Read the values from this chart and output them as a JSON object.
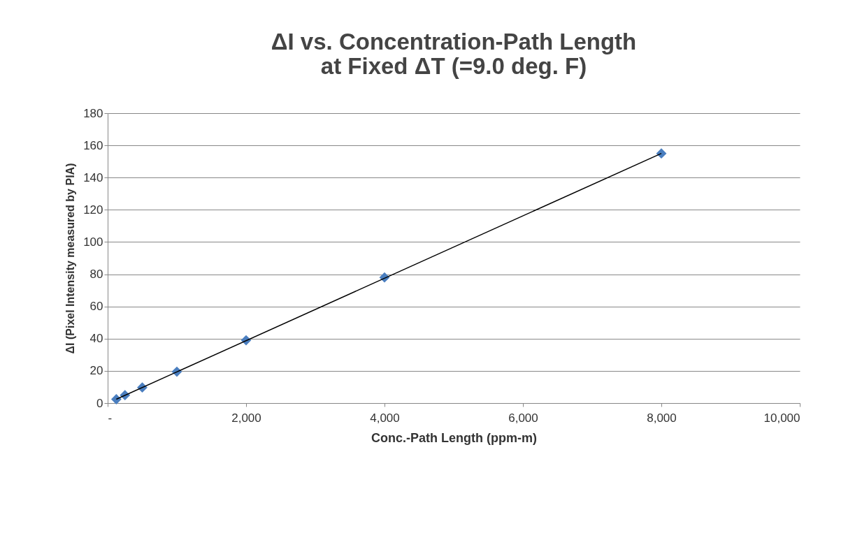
{
  "chart_data": {
    "type": "scatter",
    "title": [
      "ΔI vs. Concentration-Path Length",
      "at Fixed ΔT (=9.0 deg. F)"
    ],
    "xlabel": "Conc.-Path Length (ppm-m)",
    "ylabel": "ΔI (Pixel Intensity measured by PIA)",
    "series": [
      {
        "color": "#4a7ebf",
        "marker": "diamond",
        "x": [
          125,
          250,
          500,
          1000,
          2000,
          4000,
          8000
        ],
        "values": [
          2.4,
          4.9,
          9.7,
          19.5,
          39,
          78,
          155
        ]
      },
      {
        "type": "line",
        "marker": "none",
        "color": "#000000",
        "x": [
          125,
          8000
        ],
        "values": [
          2.4,
          155
        ]
      }
    ],
    "xlim": [
      0,
      10000
    ],
    "xticks": [
      {
        "value": 0,
        "label": "-"
      },
      {
        "value": 2000,
        "label": "2,000"
      },
      {
        "value": 4000,
        "label": "4,000"
      },
      {
        "value": 6000,
        "label": "6,000"
      },
      {
        "value": 8000,
        "label": "8,000"
      },
      {
        "value": 10000,
        "label": "10,000"
      }
    ],
    "ylim": [
      0,
      180
    ],
    "yticks": [
      0,
      20,
      40,
      60,
      80,
      100,
      120,
      140,
      160,
      180
    ],
    "grid": "y",
    "line_style": "solid"
  }
}
